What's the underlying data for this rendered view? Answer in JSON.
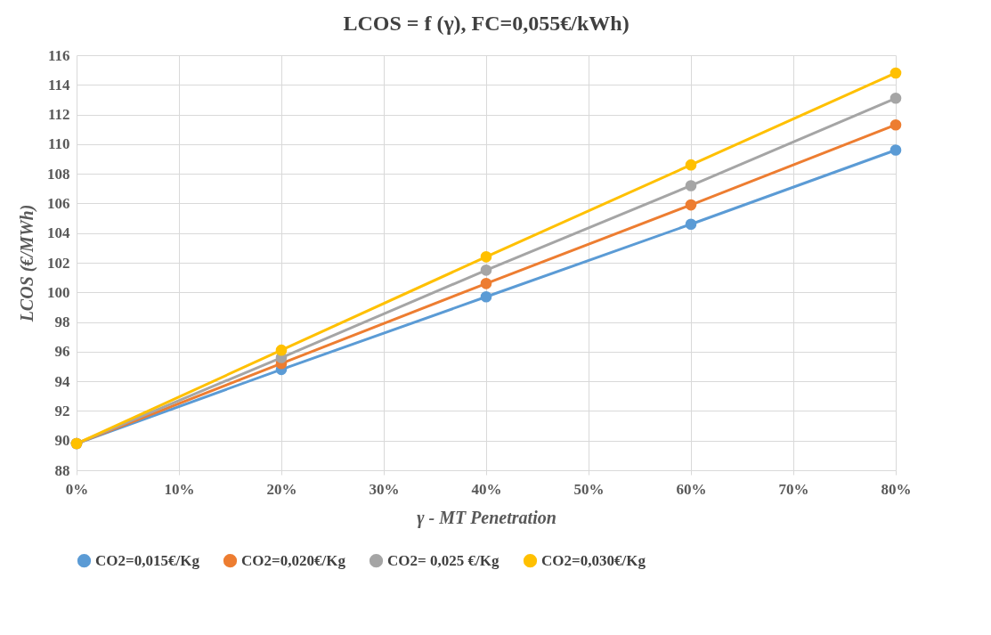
{
  "chart_data": {
    "type": "line",
    "title": "LCOS = f (γ), FC=0,055€/kWh)",
    "xlabel": "γ - MT Penetration",
    "ylabel": "LCOS (€/MWh)",
    "x": [
      0,
      20,
      40,
      60,
      80
    ],
    "xlim": [
      0,
      80
    ],
    "xticks": [
      {
        "value": 0,
        "label": "0%"
      },
      {
        "value": 10,
        "label": "10%"
      },
      {
        "value": 20,
        "label": "20%"
      },
      {
        "value": 30,
        "label": "30%"
      },
      {
        "value": 40,
        "label": "40%"
      },
      {
        "value": 50,
        "label": "50%"
      },
      {
        "value": 60,
        "label": "60%"
      },
      {
        "value": 70,
        "label": "70%"
      },
      {
        "value": 80,
        "label": "80%"
      }
    ],
    "ylim": [
      88,
      116
    ],
    "yticks": [
      88,
      90,
      92,
      94,
      96,
      98,
      100,
      102,
      104,
      106,
      108,
      110,
      112,
      114,
      116
    ],
    "grid": true,
    "legend": "bottom",
    "marker": "circle",
    "line_style": "solid",
    "series": [
      {
        "name": "CO2=0,015€/Kg",
        "color": "#5b9bd5",
        "values": [
          89.8,
          94.8,
          99.7,
          104.6,
          109.6
        ]
      },
      {
        "name": "CO2=0,020€/Kg",
        "color": "#ed7d31",
        "values": [
          89.8,
          95.2,
          100.6,
          105.9,
          111.3
        ]
      },
      {
        "name": "CO2= 0,025 €/Kg",
        "color": "#a5a5a5",
        "values": [
          89.8,
          95.6,
          101.5,
          107.2,
          113.1
        ]
      },
      {
        "name": "CO2=0,030€/Kg",
        "color": "#ffc000",
        "values": [
          89.8,
          96.1,
          102.4,
          108.6,
          114.8
        ]
      }
    ]
  }
}
